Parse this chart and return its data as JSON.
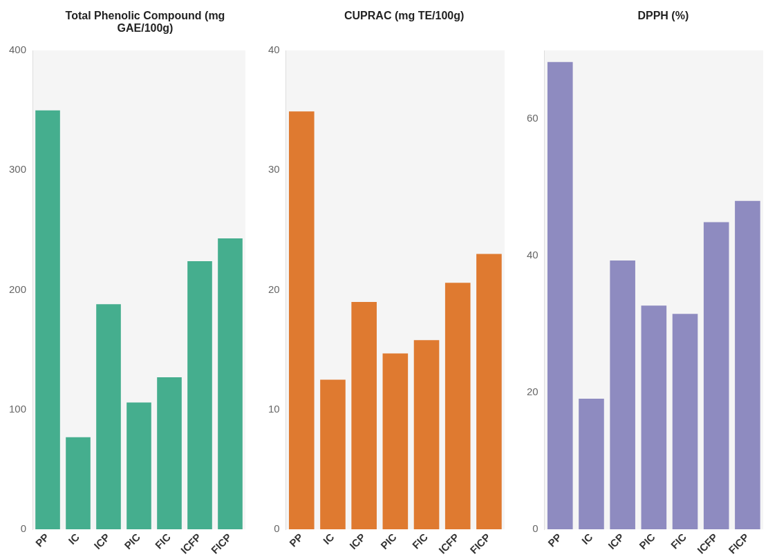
{
  "chart_data": [
    {
      "type": "bar",
      "title": "Total Phenolic Compound (mg GAE/100g)",
      "categories": [
        "PP",
        "IC",
        "ICP",
        "PIC",
        "FIC",
        "ICFP",
        "FICP"
      ],
      "values": [
        350,
        77,
        188,
        106,
        127,
        224,
        243
      ],
      "color": "#45ae8e",
      "ylim": [
        0,
        400
      ],
      "yticks": [
        0,
        100,
        200,
        300,
        400
      ],
      "grid": false,
      "legend": false
    },
    {
      "type": "bar",
      "title": "CUPRAC (mg TE/100g)",
      "categories": [
        "PP",
        "IC",
        "ICP",
        "PIC",
        "FIC",
        "ICFP",
        "FICP"
      ],
      "values": [
        34.9,
        12.5,
        19.0,
        14.7,
        15.8,
        20.6,
        23.0
      ],
      "color": "#df7a30",
      "ylim": [
        0,
        40
      ],
      "yticks": [
        0,
        10,
        20,
        30,
        40
      ],
      "grid": false,
      "legend": false
    },
    {
      "type": "bar",
      "title": "DPPH (%)",
      "categories": [
        "PP",
        "IC",
        "ICP",
        "PIC",
        "FIC",
        "ICFP",
        "FICP"
      ],
      "values": [
        68.3,
        19.1,
        39.3,
        32.7,
        31.5,
        44.9,
        48.0
      ],
      "color": "#8e8bc0",
      "ylim": [
        0,
        70
      ],
      "yticks": [
        0,
        20,
        40,
        60
      ],
      "grid": false,
      "legend": false
    }
  ]
}
